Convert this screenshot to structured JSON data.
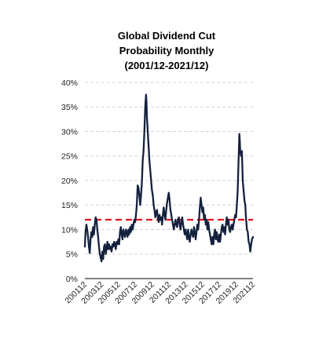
{
  "chart_data": {
    "type": "line",
    "title_lines": [
      "Global Dividend Cut",
      "Probability Monthly",
      "(2001/12-2021/12)"
    ],
    "xlabel": "",
    "ylabel": "",
    "x_tick_labels": [
      "200112",
      "200312",
      "200512",
      "200712",
      "200912",
      "201112",
      "201312",
      "201512",
      "201712",
      "201912",
      "202112"
    ],
    "x_range": [
      2001.92,
      2021.92
    ],
    "y_tick_labels": [
      "0%",
      "5%",
      "10%",
      "15%",
      "20%",
      "25%",
      "30%",
      "35%",
      "40%"
    ],
    "ylim": [
      0,
      40
    ],
    "grid": "horizontal dashed",
    "reference_line": {
      "value": 12,
      "style": "dashed",
      "color": "#e8141e"
    },
    "series": [
      {
        "color": "#14213d",
        "points": [
          [
            2001.92,
            6.5
          ],
          [
            2002.0,
            9.5
          ],
          [
            2002.1,
            11
          ],
          [
            2002.2,
            10
          ],
          [
            2002.3,
            8.5
          ],
          [
            2002.4,
            6.5
          ],
          [
            2002.5,
            5.2
          ],
          [
            2002.6,
            8
          ],
          [
            2002.7,
            9.5
          ],
          [
            2002.8,
            8.5
          ],
          [
            2002.9,
            10.5
          ],
          [
            2003.0,
            9
          ],
          [
            2003.1,
            11
          ],
          [
            2003.2,
            12.5
          ],
          [
            2003.3,
            12
          ],
          [
            2003.4,
            10
          ],
          [
            2003.5,
            8.5
          ],
          [
            2003.6,
            6.5
          ],
          [
            2003.7,
            5
          ],
          [
            2003.8,
            4.3
          ],
          [
            2003.9,
            3.5
          ],
          [
            2004.0,
            5.5
          ],
          [
            2004.1,
            4
          ],
          [
            2004.2,
            6.5
          ],
          [
            2004.3,
            7
          ],
          [
            2004.4,
            5
          ],
          [
            2004.5,
            6
          ],
          [
            2004.6,
            7.5
          ],
          [
            2004.7,
            6
          ],
          [
            2004.8,
            7
          ],
          [
            2004.9,
            6
          ],
          [
            2005.0,
            6.5
          ],
          [
            2005.1,
            5.5
          ],
          [
            2005.2,
            7
          ],
          [
            2005.3,
            6.5
          ],
          [
            2005.4,
            7.5
          ],
          [
            2005.5,
            7
          ],
          [
            2005.6,
            6
          ],
          [
            2005.7,
            7.5
          ],
          [
            2005.8,
            7
          ],
          [
            2005.9,
            8
          ],
          [
            2006.0,
            7
          ],
          [
            2006.1,
            9.5
          ],
          [
            2006.2,
            10.5
          ],
          [
            2006.3,
            9
          ],
          [
            2006.4,
            8
          ],
          [
            2006.5,
            10
          ],
          [
            2006.6,
            9
          ],
          [
            2006.7,
            8.5
          ],
          [
            2006.8,
            10
          ],
          [
            2006.9,
            9.5
          ],
          [
            2007.0,
            8.5
          ],
          [
            2007.1,
            10
          ],
          [
            2007.2,
            9
          ],
          [
            2007.3,
            10.5
          ],
          [
            2007.4,
            9.5
          ],
          [
            2007.5,
            11
          ],
          [
            2007.6,
            10
          ],
          [
            2007.7,
            11
          ],
          [
            2007.8,
            12
          ],
          [
            2007.9,
            11.5
          ],
          [
            2008.0,
            13
          ],
          [
            2008.1,
            15
          ],
          [
            2008.2,
            19
          ],
          [
            2008.3,
            18.5
          ],
          [
            2008.4,
            17
          ],
          [
            2008.5,
            15
          ],
          [
            2008.6,
            17
          ],
          [
            2008.7,
            19.5
          ],
          [
            2008.8,
            24
          ],
          [
            2008.9,
            26
          ],
          [
            2009.0,
            30
          ],
          [
            2009.1,
            35
          ],
          [
            2009.2,
            37.5
          ],
          [
            2009.25,
            36
          ],
          [
            2009.3,
            33
          ],
          [
            2009.4,
            30
          ],
          [
            2009.5,
            27
          ],
          [
            2009.6,
            24
          ],
          [
            2009.7,
            22
          ],
          [
            2009.8,
            20
          ],
          [
            2009.9,
            18
          ],
          [
            2010.0,
            17
          ],
          [
            2010.1,
            15
          ],
          [
            2010.2,
            14
          ],
          [
            2010.3,
            12.5
          ],
          [
            2010.4,
            13.5
          ],
          [
            2010.5,
            14
          ],
          [
            2010.6,
            12.5
          ],
          [
            2010.7,
            11.5
          ],
          [
            2010.8,
            13
          ],
          [
            2010.9,
            12
          ],
          [
            2011.0,
            12.5
          ],
          [
            2011.1,
            11
          ],
          [
            2011.2,
            13
          ],
          [
            2011.3,
            14.5
          ],
          [
            2011.4,
            13
          ],
          [
            2011.5,
            12
          ],
          [
            2011.6,
            14
          ],
          [
            2011.7,
            15.5
          ],
          [
            2011.8,
            16.5
          ],
          [
            2011.9,
            17.5
          ],
          [
            2012.0,
            16
          ],
          [
            2012.1,
            14
          ],
          [
            2012.2,
            13
          ],
          [
            2012.3,
            12
          ],
          [
            2012.4,
            11
          ],
          [
            2012.5,
            10
          ],
          [
            2012.6,
            11
          ],
          [
            2012.7,
            12
          ],
          [
            2012.8,
            11
          ],
          [
            2012.9,
            10.5
          ],
          [
            2013.0,
            12
          ],
          [
            2013.1,
            12.5
          ],
          [
            2013.2,
            11
          ],
          [
            2013.3,
            10
          ],
          [
            2013.4,
            11.5
          ],
          [
            2013.5,
            12.5
          ],
          [
            2013.6,
            11
          ],
          [
            2013.7,
            10
          ],
          [
            2013.8,
            9
          ],
          [
            2013.9,
            10
          ],
          [
            2014.0,
            9
          ],
          [
            2014.1,
            8
          ],
          [
            2014.2,
            10
          ],
          [
            2014.3,
            8.5
          ],
          [
            2014.4,
            7.5
          ],
          [
            2014.5,
            9
          ],
          [
            2014.6,
            10
          ],
          [
            2014.7,
            9
          ],
          [
            2014.8,
            8.5
          ],
          [
            2014.9,
            10.5
          ],
          [
            2015.0,
            9.5
          ],
          [
            2015.1,
            8
          ],
          [
            2015.2,
            9.5
          ],
          [
            2015.3,
            11
          ],
          [
            2015.4,
            10
          ],
          [
            2015.5,
            12
          ],
          [
            2015.6,
            14.5
          ],
          [
            2015.7,
            16.5
          ],
          [
            2015.8,
            15
          ],
          [
            2015.9,
            13.5
          ],
          [
            2016.0,
            14.5
          ],
          [
            2016.1,
            12
          ],
          [
            2016.2,
            13
          ],
          [
            2016.3,
            11
          ],
          [
            2016.4,
            12
          ],
          [
            2016.5,
            10
          ],
          [
            2016.6,
            11.5
          ],
          [
            2016.7,
            10
          ],
          [
            2016.8,
            9
          ],
          [
            2016.9,
            8
          ],
          [
            2017.0,
            7
          ],
          [
            2017.1,
            8.5
          ],
          [
            2017.2,
            7
          ],
          [
            2017.3,
            9
          ],
          [
            2017.4,
            10
          ],
          [
            2017.5,
            8
          ],
          [
            2017.6,
            9.5
          ],
          [
            2017.7,
            8
          ],
          [
            2017.8,
            7.5
          ],
          [
            2017.9,
            9
          ],
          [
            2018.0,
            7.5
          ],
          [
            2018.1,
            9
          ],
          [
            2018.2,
            10.5
          ],
          [
            2018.3,
            11
          ],
          [
            2018.4,
            9.5
          ],
          [
            2018.5,
            10.5
          ],
          [
            2018.6,
            9
          ],
          [
            2018.7,
            11
          ],
          [
            2018.8,
            12.5
          ],
          [
            2018.9,
            11
          ],
          [
            2019.0,
            12
          ],
          [
            2019.1,
            10
          ],
          [
            2019.2,
            9.5
          ],
          [
            2019.3,
            10.5
          ],
          [
            2019.4,
            11
          ],
          [
            2019.5,
            10
          ],
          [
            2019.6,
            11
          ],
          [
            2019.7,
            12
          ],
          [
            2019.8,
            13
          ],
          [
            2019.9,
            12.5
          ],
          [
            2020.0,
            15
          ],
          [
            2020.1,
            18
          ],
          [
            2020.2,
            24
          ],
          [
            2020.3,
            29.5
          ],
          [
            2020.35,
            28
          ],
          [
            2020.4,
            26
          ],
          [
            2020.5,
            25
          ],
          [
            2020.6,
            26
          ],
          [
            2020.7,
            20
          ],
          [
            2020.8,
            18
          ],
          [
            2020.9,
            16
          ],
          [
            2021.0,
            15
          ],
          [
            2021.1,
            12
          ],
          [
            2021.2,
            10
          ],
          [
            2021.3,
            9.5
          ],
          [
            2021.4,
            7.5
          ],
          [
            2021.5,
            7
          ],
          [
            2021.6,
            5.5
          ],
          [
            2021.7,
            7
          ],
          [
            2021.8,
            8
          ],
          [
            2021.92,
            8.5
          ]
        ]
      }
    ]
  }
}
